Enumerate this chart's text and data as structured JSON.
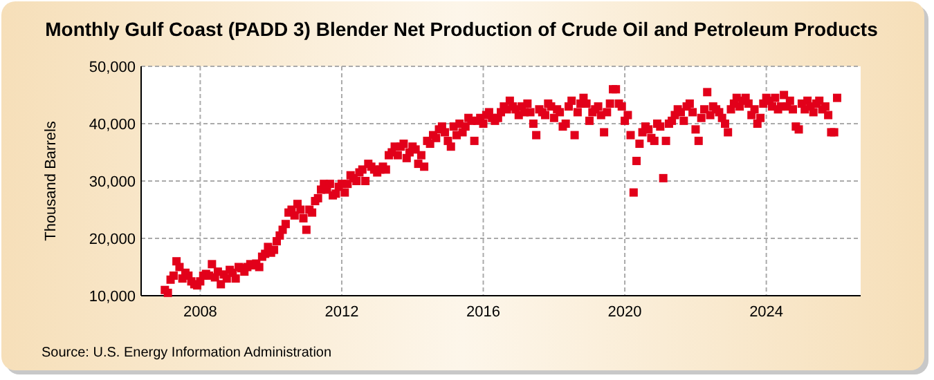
{
  "chart_data": {
    "type": "scatter",
    "title": "Monthly Gulf Coast (PADD 3) Blender Net Production of Crude Oil and Petroleum Products",
    "ylabel": "Thousand Barrels",
    "annotations": [
      "Source: U.S. Energy Information Administration"
    ],
    "marker": "square",
    "grid": true,
    "xlim": [
      "2006-05",
      "2026-09"
    ],
    "ylim": [
      10000,
      50000
    ],
    "xticks": [
      "2008",
      "2012",
      "2016",
      "2020",
      "2024"
    ],
    "yticks": [
      {
        "value": 10000,
        "label": "10,000"
      },
      {
        "value": 20000,
        "label": "20,000"
      },
      {
        "value": 30000,
        "label": "30,000"
      },
      {
        "value": 40000,
        "label": "40,000"
      },
      {
        "value": 50000,
        "label": "50,000"
      }
    ],
    "series": [
      {
        "color": "#e2001a",
        "x": [
          "2007-01",
          "2007-02",
          "2007-03",
          "2007-04",
          "2007-05",
          "2007-06",
          "2007-07",
          "2007-08",
          "2007-09",
          "2007-10",
          "2007-11",
          "2007-12",
          "2008-01",
          "2008-02",
          "2008-03",
          "2008-04",
          "2008-05",
          "2008-06",
          "2008-07",
          "2008-08",
          "2008-09",
          "2008-10",
          "2008-11",
          "2008-12",
          "2009-01",
          "2009-02",
          "2009-03",
          "2009-04",
          "2009-05",
          "2009-06",
          "2009-07",
          "2009-08",
          "2009-09",
          "2009-10",
          "2009-11",
          "2009-12",
          "2010-01",
          "2010-02",
          "2010-03",
          "2010-04",
          "2010-05",
          "2010-06",
          "2010-07",
          "2010-08",
          "2010-09",
          "2010-10",
          "2010-11",
          "2010-12",
          "2011-01",
          "2011-02",
          "2011-03",
          "2011-04",
          "2011-05",
          "2011-06",
          "2011-07",
          "2011-08",
          "2011-09",
          "2011-10",
          "2011-11",
          "2011-12",
          "2012-01",
          "2012-02",
          "2012-03",
          "2012-04",
          "2012-05",
          "2012-06",
          "2012-07",
          "2012-08",
          "2012-09",
          "2012-10",
          "2012-11",
          "2012-12",
          "2013-01",
          "2013-02",
          "2013-03",
          "2013-04",
          "2013-05",
          "2013-06",
          "2013-07",
          "2013-08",
          "2013-09",
          "2013-10",
          "2013-11",
          "2013-12",
          "2014-01",
          "2014-02",
          "2014-03",
          "2014-04",
          "2014-05",
          "2014-06",
          "2014-07",
          "2014-08",
          "2014-09",
          "2014-10",
          "2014-11",
          "2014-12",
          "2015-01",
          "2015-02",
          "2015-03",
          "2015-04",
          "2015-05",
          "2015-06",
          "2015-07",
          "2015-08",
          "2015-09",
          "2015-10",
          "2015-11",
          "2015-12",
          "2016-01",
          "2016-02",
          "2016-03",
          "2016-04",
          "2016-05",
          "2016-06",
          "2016-07",
          "2016-08",
          "2016-09",
          "2016-10",
          "2016-11",
          "2016-12",
          "2017-01",
          "2017-02",
          "2017-03",
          "2017-04",
          "2017-05",
          "2017-06",
          "2017-07",
          "2017-08",
          "2017-09",
          "2017-10",
          "2017-11",
          "2017-12",
          "2018-01",
          "2018-02",
          "2018-03",
          "2018-04",
          "2018-05",
          "2018-06",
          "2018-07",
          "2018-08",
          "2018-09",
          "2018-10",
          "2018-11",
          "2018-12",
          "2019-01",
          "2019-02",
          "2019-03",
          "2019-04",
          "2019-05",
          "2019-06",
          "2019-07",
          "2019-08",
          "2019-09",
          "2019-10",
          "2019-11",
          "2019-12",
          "2020-01",
          "2020-02",
          "2020-03",
          "2020-04",
          "2020-05",
          "2020-06",
          "2020-07",
          "2020-08",
          "2020-09",
          "2020-10",
          "2020-11",
          "2020-12",
          "2021-01",
          "2021-02",
          "2021-03",
          "2021-04",
          "2021-05",
          "2021-06",
          "2021-07",
          "2021-08",
          "2021-09",
          "2021-10",
          "2021-11",
          "2021-12",
          "2022-01",
          "2022-02",
          "2022-03",
          "2022-04",
          "2022-05",
          "2022-06",
          "2022-07",
          "2022-08",
          "2022-09",
          "2022-10",
          "2022-11",
          "2022-12",
          "2023-01",
          "2023-02",
          "2023-03",
          "2023-04",
          "2023-05",
          "2023-06",
          "2023-07",
          "2023-08",
          "2023-09",
          "2023-10",
          "2023-11",
          "2023-12",
          "2024-01",
          "2024-02",
          "2024-03",
          "2024-04",
          "2024-05",
          "2024-06",
          "2024-07",
          "2024-08",
          "2024-09",
          "2024-10",
          "2024-11",
          "2024-12",
          "2025-01",
          "2025-02",
          "2025-03",
          "2025-04",
          "2025-05",
          "2025-06",
          "2025-07",
          "2025-08",
          "2025-09",
          "2025-10",
          "2025-11",
          "2025-12",
          "2026-01"
        ],
        "values": [
          11000,
          10500,
          12800,
          13500,
          16000,
          15000,
          13000,
          14000,
          13500,
          12500,
          12000,
          11800,
          12500,
          13500,
          13800,
          13500,
          15500,
          13200,
          14200,
          12000,
          13700,
          13000,
          14500,
          14000,
          13000,
          15000,
          14800,
          14200,
          15000,
          15500,
          15300,
          15600,
          15000,
          16800,
          17300,
          18500,
          17500,
          18000,
          19500,
          20500,
          21500,
          22500,
          24500,
          25000,
          24000,
          26000,
          25000,
          23500,
          21500,
          25000,
          24500,
          26500,
          27000,
          28500,
          29500,
          28500,
          29500,
          27500,
          27800,
          29000,
          29500,
          28000,
          29500,
          31000,
          30500,
          30000,
          31500,
          32000,
          30000,
          33000,
          32500,
          32000,
          31500,
          32000,
          32500,
          32000,
          34500,
          35000,
          36000,
          34500,
          36000,
          36500,
          34000,
          35000,
          36000,
          35500,
          33000,
          34500,
          32500,
          37000,
          36500,
          38000,
          37500,
          39000,
          39500,
          38500,
          37000,
          36000,
          39500,
          38000,
          40000,
          38500,
          39500,
          41000,
          40500,
          37000,
          40500,
          41000,
          40000,
          41500,
          42000,
          41000,
          40500,
          41000,
          42000,
          43000,
          42500,
          44000,
          43000,
          42500,
          41500,
          43000,
          42000,
          43500,
          42000,
          40000,
          38000,
          42500,
          42000,
          41500,
          43500,
          43000,
          41000,
          42500,
          42000,
          39500,
          40000,
          43000,
          44000,
          38000,
          42000,
          43500,
          44500,
          43500,
          40500,
          42000,
          42500,
          43000,
          41500,
          38500,
          42000,
          43500,
          46000,
          46000,
          43500,
          43000,
          40500,
          41500,
          38000,
          28000,
          33500,
          36500,
          38500,
          39500,
          39000,
          37500,
          37000,
          40000,
          39500,
          30500,
          37000,
          40000,
          40500,
          41500,
          42500,
          42000,
          40500,
          43000,
          43500,
          42000,
          39000,
          37000,
          41000,
          42500,
          45500,
          41500,
          43000,
          42500,
          42000,
          41000,
          40000,
          38500,
          42500,
          43500,
          44500,
          43000,
          44000,
          44500,
          43500,
          41500,
          42500,
          40000,
          41000,
          43500,
          44500,
          44000,
          43000,
          44500,
          42500,
          43000,
          45000,
          43000,
          44000,
          42500,
          39500,
          39000,
          43500,
          42500,
          44000,
          43000,
          42000,
          43500,
          44000,
          42500,
          43000,
          41500,
          38500,
          38500,
          44500
        ]
      }
    ]
  }
}
